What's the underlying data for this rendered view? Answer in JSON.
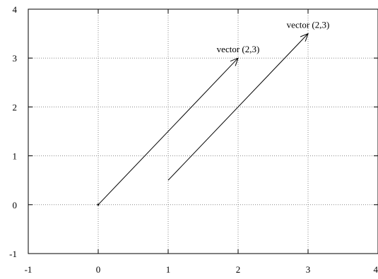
{
  "chart_data": {
    "type": "vector",
    "title": "",
    "xlabel": "",
    "ylabel": "",
    "xlim": [
      -1,
      4
    ],
    "ylim": [
      -1,
      4
    ],
    "grid": true,
    "x_ticks": [
      "-1",
      "0",
      "1",
      "2",
      "3",
      "4"
    ],
    "y_ticks": [
      "-1",
      "0",
      "1",
      "2",
      "3",
      "4"
    ],
    "vectors": [
      {
        "start": [
          0,
          0
        ],
        "end": [
          2,
          3
        ],
        "label": "vector (2,3)"
      },
      {
        "start": [
          1,
          0.5
        ],
        "end": [
          3,
          3.5
        ],
        "label": "vector (2,3)"
      }
    ],
    "points": [
      [
        0,
        0
      ]
    ]
  }
}
